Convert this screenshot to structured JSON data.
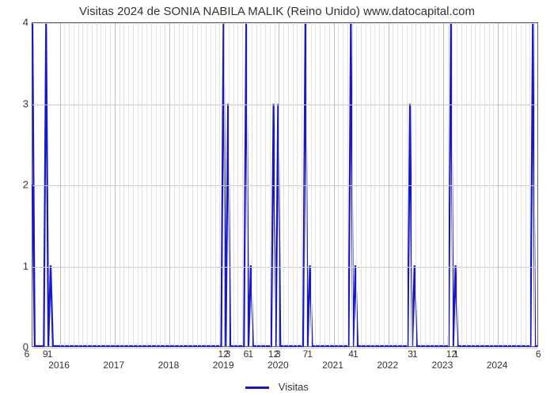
{
  "chart": {
    "type": "line-spike",
    "title": "Visitas 2024 de SONIA NABILA MALIK (Reino Unido) www.datocapital.com",
    "title_fontsize": 15,
    "title_color": "#333333",
    "background_color": "#ffffff",
    "plot_border_color": "#666666",
    "grid_major_color": "#bbbbbb",
    "grid_minor_color": "#e2e2e2",
    "line_color": "#1818C8",
    "line_width": 2.2,
    "ylim": [
      0,
      4
    ],
    "yticks": [
      0,
      1,
      2,
      3,
      4
    ],
    "label_fontsize": 13,
    "label_color": "#333333",
    "years": [
      2016,
      2017,
      2018,
      2019,
      2020,
      2021,
      2022,
      2023,
      2024
    ],
    "x_start_year": 2015.5,
    "x_end_year": 2024.75,
    "n_bins": 111,
    "minor_ticks_per_year": 12,
    "left_edge_value": 2,
    "spikes": [
      {
        "bin": 0,
        "value": 6,
        "label_offset": -6
      },
      {
        "bin": 3,
        "value": 9,
        "label": "9"
      },
      {
        "bin": 4,
        "value": 1
      },
      {
        "bin": 42,
        "value": 12,
        "label": "12"
      },
      {
        "bin": 43,
        "value": 3
      },
      {
        "bin": 47,
        "value": 6,
        "label": "6"
      },
      {
        "bin": 48,
        "value": 1
      },
      {
        "bin": 53,
        "value": 12,
        "label": "12",
        "display": 3
      },
      {
        "bin": 54,
        "value": 3
      },
      {
        "bin": 60,
        "value": 7,
        "label": "7"
      },
      {
        "bin": 61,
        "value": 1
      },
      {
        "bin": 70,
        "value": 4,
        "label": "4"
      },
      {
        "bin": 71,
        "value": 1
      },
      {
        "bin": 83,
        "value": 3,
        "label": "3"
      },
      {
        "bin": 84,
        "value": 1
      },
      {
        "bin": 92,
        "value": 12,
        "label": "12"
      },
      {
        "bin": 93,
        "value": 1
      },
      {
        "bin": 110,
        "value": 6,
        "label_offset": 6
      }
    ],
    "legend": {
      "label": "Visitas",
      "swatch_color": "#1818C8"
    }
  }
}
